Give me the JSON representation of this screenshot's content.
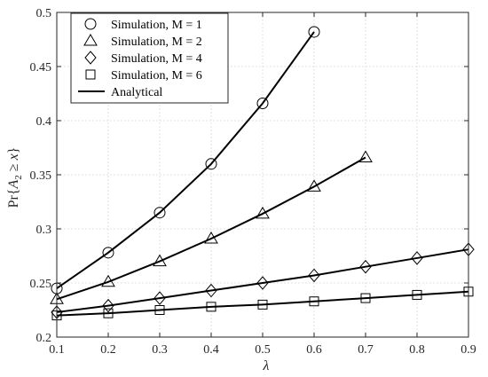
{
  "chart_data": {
    "type": "line",
    "xlabel": "λ",
    "ylabel_parts": {
      "prefix": "Pr{",
      "var": "A",
      "sub": "2",
      "rel": " ≥ ",
      "x": "x",
      "suffix": "}"
    },
    "xlim": [
      0.1,
      0.9
    ],
    "ylim": [
      0.2,
      0.5
    ],
    "xticks": [
      0.1,
      0.2,
      0.3,
      0.4,
      0.5,
      0.6,
      0.7,
      0.8,
      0.9
    ],
    "yticks": [
      0.2,
      0.25,
      0.3,
      0.35,
      0.4,
      0.45,
      0.5
    ],
    "xtick_labels": [
      "0.1",
      "0.2",
      "0.3",
      "0.4",
      "0.5",
      "0.6",
      "0.7",
      "0.8",
      "0.9"
    ],
    "ytick_labels": [
      "0.2",
      "0.25",
      "0.3",
      "0.35",
      "0.4",
      "0.45",
      "0.5"
    ],
    "grid": true,
    "legend_placement": "top-left",
    "series": [
      {
        "name": "Simulation, M = 1",
        "marker": "circle",
        "x": [
          0.1,
          0.2,
          0.3,
          0.4,
          0.5,
          0.6
        ],
        "y": [
          0.245,
          0.278,
          0.315,
          0.36,
          0.416,
          0.482
        ]
      },
      {
        "name": "Simulation, M = 2",
        "marker": "triangle",
        "x": [
          0.1,
          0.2,
          0.3,
          0.4,
          0.5,
          0.6,
          0.7
        ],
        "y": [
          0.235,
          0.251,
          0.27,
          0.291,
          0.314,
          0.339,
          0.366
        ]
      },
      {
        "name": "Simulation, M = 4",
        "marker": "diamond",
        "x": [
          0.1,
          0.2,
          0.3,
          0.4,
          0.5,
          0.6,
          0.7,
          0.8,
          0.9
        ],
        "y": [
          0.223,
          0.229,
          0.236,
          0.243,
          0.25,
          0.257,
          0.265,
          0.273,
          0.281
        ]
      },
      {
        "name": "Simulation, M = 6",
        "marker": "square",
        "x": [
          0.1,
          0.2,
          0.3,
          0.4,
          0.5,
          0.6,
          0.7,
          0.8,
          0.9
        ],
        "y": [
          0.22,
          0.222,
          0.225,
          0.228,
          0.23,
          0.233,
          0.236,
          0.239,
          0.242
        ]
      }
    ],
    "analytical_label": "Analytical",
    "line_color": "#000000"
  }
}
